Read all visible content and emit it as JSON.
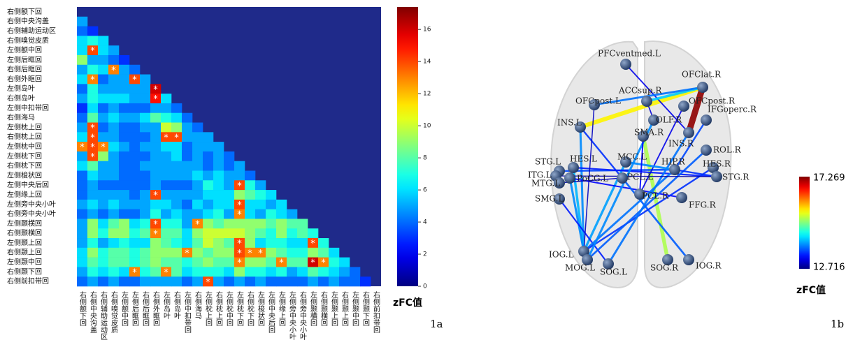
{
  "chart_data": [
    {
      "type": "heatmap",
      "panel": "1a",
      "colorbar_label": "zFC值",
      "marker": "*",
      "categories": [
        "右侧额下回",
        "右侧中央沟盖",
        "右侧辅助运动区",
        "右侧嗅觉皮质",
        "左侧额中回",
        "左侧后眶回",
        "右侧后眶回",
        "右侧外眶回",
        "左侧岛叶",
        "右侧岛叶",
        "左侧中扣带回",
        "右侧海马",
        "左侧枕上回",
        "右侧枕上回",
        "左侧枕中回",
        "左侧枕下回",
        "右侧枕下回",
        "左侧梭状回",
        "左侧中央后回",
        "左侧缘上回",
        "左侧旁中央小叶",
        "右侧旁中央小叶",
        "左侧颞横回",
        "右侧颞横回",
        "左侧颞上回",
        "右侧颞上回",
        "左侧颞中回",
        "右侧颞下回",
        "右侧前扣带回"
      ],
      "values": [
        [],
        [
          5
        ],
        [
          4,
          3
        ],
        [
          6,
          7,
          6
        ],
        [
          6,
          14,
          6,
          5
        ],
        [
          9,
          5,
          5,
          4,
          3
        ],
        [
          5,
          7,
          6,
          13,
          5,
          4
        ],
        [
          6,
          13,
          4,
          5,
          5,
          14,
          5
        ],
        [
          4,
          7,
          5,
          5,
          5,
          5,
          5,
          16
        ],
        [
          5,
          7,
          6,
          6,
          6,
          5,
          5,
          15,
          6
        ],
        [
          3,
          6,
          4,
          5,
          4,
          4,
          4,
          5,
          5,
          4
        ],
        [
          4,
          8,
          5,
          6,
          5,
          5,
          6,
          8,
          7,
          6,
          4
        ],
        [
          5,
          14,
          4,
          5,
          4,
          4,
          5,
          5,
          10,
          9,
          5,
          4
        ],
        [
          6,
          14,
          5,
          5,
          4,
          4,
          4,
          5,
          14,
          14,
          5,
          5,
          5
        ],
        [
          13,
          14,
          13,
          6,
          5,
          4,
          5,
          5,
          6,
          6,
          4,
          5,
          5,
          5
        ],
        [
          5,
          14,
          9,
          5,
          4,
          4,
          4,
          5,
          5,
          6,
          4,
          5,
          4,
          5,
          4
        ],
        [
          6,
          8,
          5,
          5,
          4,
          4,
          5,
          5,
          5,
          5,
          5,
          5,
          4,
          5,
          4,
          5
        ],
        [
          4,
          6,
          5,
          5,
          4,
          4,
          4,
          5,
          5,
          5,
          5,
          6,
          5,
          6,
          5,
          5,
          4
        ],
        [
          4,
          5,
          4,
          4,
          4,
          4,
          4,
          5,
          4,
          4,
          4,
          5,
          7,
          6,
          5,
          14,
          7,
          5
        ],
        [
          4,
          5,
          5,
          5,
          5,
          4,
          5,
          14,
          5,
          5,
          5,
          5,
          6,
          6,
          6,
          9,
          8,
          7,
          6
        ],
        [
          5,
          6,
          5,
          6,
          5,
          5,
          5,
          6,
          6,
          5,
          4,
          6,
          5,
          6,
          6,
          14,
          6,
          6,
          5,
          6
        ],
        [
          4,
          5,
          4,
          5,
          4,
          4,
          5,
          7,
          5,
          6,
          5,
          5,
          6,
          7,
          5,
          13,
          6,
          5,
          7,
          6,
          5
        ],
        [
          5,
          9,
          6,
          8,
          9,
          6,
          7,
          14,
          7,
          7,
          5,
          13,
          9,
          8,
          9,
          9,
          9,
          9,
          8,
          9,
          8,
          8
        ],
        [
          5,
          9,
          7,
          9,
          9,
          7,
          8,
          13,
          8,
          8,
          6,
          9,
          10,
          10,
          10,
          10,
          9,
          8,
          7,
          9,
          7,
          8,
          7
        ],
        [
          5,
          7,
          5,
          6,
          7,
          6,
          6,
          9,
          8,
          7,
          6,
          8,
          10,
          9,
          8,
          14,
          9,
          6,
          7,
          7,
          6,
          6,
          14,
          7
        ],
        [
          6,
          9,
          7,
          8,
          8,
          7,
          8,
          9,
          9,
          9,
          13,
          9,
          8,
          9,
          9,
          14,
          13,
          13,
          9,
          8,
          7,
          7,
          9,
          8,
          6
        ],
        [
          6,
          8,
          7,
          8,
          8,
          7,
          8,
          9,
          8,
          8,
          7,
          8,
          9,
          8,
          8,
          13,
          9,
          9,
          8,
          13,
          8,
          8,
          16,
          13,
          7,
          6
        ],
        [
          5,
          7,
          6,
          7,
          6,
          13,
          7,
          8,
          13,
          8,
          6,
          7,
          7,
          7,
          6,
          9,
          7,
          7,
          6,
          7,
          5,
          6,
          8,
          7,
          6,
          5,
          4
        ],
        [
          4,
          5,
          4,
          5,
          4,
          4,
          5,
          5,
          5,
          5,
          4,
          5,
          14,
          5,
          4,
          5,
          4,
          5,
          4,
          4,
          4,
          4,
          5,
          4,
          5,
          4,
          4,
          3
        ]
      ],
      "significant": [
        [
          4,
          1
        ],
        [
          6,
          3
        ],
        [
          7,
          1
        ],
        [
          7,
          5
        ],
        [
          8,
          7
        ],
        [
          9,
          7
        ],
        [
          12,
          1
        ],
        [
          13,
          1
        ],
        [
          13,
          8
        ],
        [
          13,
          9
        ],
        [
          14,
          0
        ],
        [
          14,
          1
        ],
        [
          14,
          2
        ],
        [
          15,
          1
        ],
        [
          18,
          15
        ],
        [
          19,
          7
        ],
        [
          20,
          15
        ],
        [
          21,
          15
        ],
        [
          22,
          7
        ],
        [
          22,
          11
        ],
        [
          23,
          7
        ],
        [
          24,
          15
        ],
        [
          24,
          22
        ],
        [
          25,
          10
        ],
        [
          25,
          15
        ],
        [
          25,
          16
        ],
        [
          25,
          17
        ],
        [
          26,
          15
        ],
        [
          26,
          19
        ],
        [
          26,
          22
        ],
        [
          26,
          23
        ],
        [
          27,
          5
        ],
        [
          27,
          8
        ],
        [
          28,
          12
        ]
      ],
      "zlim": [
        0,
        17.4
      ],
      "zticks": [
        0,
        2,
        4,
        6,
        8,
        10,
        12,
        14,
        16
      ]
    },
    {
      "type": "network",
      "panel": "1b",
      "colorbar_label": "zFC值",
      "zlim": [
        12.716,
        17.269
      ],
      "nodes": [
        "PFCventmed.L",
        "OFClat.R",
        "ACCsup.R",
        "OFCpost.L",
        "OFCpost.R",
        "IFGoperc.R",
        "OLF.R",
        "INS.L",
        "SMA.R",
        "INS.R",
        "ROL.R",
        "MCC.L",
        "HIP.R",
        "HES.R",
        "STG.L",
        "HES.L",
        "ITG.L",
        "MTG.L",
        "PoCG.L",
        "PCL.L",
        "STG.R",
        "SMG.L",
        "PCL.R",
        "FFG.R",
        "IOG.L",
        "MOG.L",
        "SOG.L",
        "SOG.R",
        "IOG.R"
      ],
      "edges": [
        {
          "source": 1,
          "target": 7,
          "value": 15.6
        },
        {
          "source": 1,
          "target": 9,
          "value": 17.2
        },
        {
          "source": 11,
          "target": 24,
          "value": 14.0
        },
        {
          "source": 8,
          "target": 27,
          "value": 15.2
        },
        {
          "source": 0,
          "target": 9,
          "value": 13.2
        },
        {
          "source": 2,
          "target": 1,
          "value": 14.2
        },
        {
          "source": 3,
          "target": 1,
          "value": 13.8
        },
        {
          "source": 7,
          "target": 24,
          "value": 13.9
        },
        {
          "source": 7,
          "target": 19,
          "value": 13.5
        },
        {
          "source": 15,
          "target": 24,
          "value": 14.1
        },
        {
          "source": 18,
          "target": 24,
          "value": 13.9
        },
        {
          "source": 14,
          "target": 12,
          "value": 13.6
        },
        {
          "source": 15,
          "target": 20,
          "value": 13.4
        },
        {
          "source": 18,
          "target": 23,
          "value": 13.3
        },
        {
          "source": 19,
          "target": 28,
          "value": 13.7
        },
        {
          "source": 21,
          "target": 26,
          "value": 13.4
        },
        {
          "source": 12,
          "target": 24,
          "value": 13.8
        },
        {
          "source": 13,
          "target": 24,
          "value": 13.5
        },
        {
          "source": 6,
          "target": 25,
          "value": 13.9
        },
        {
          "source": 4,
          "target": 22,
          "value": 13.2
        },
        {
          "source": 5,
          "target": 12,
          "value": 13.6
        },
        {
          "source": 10,
          "target": 25,
          "value": 13.7
        },
        {
          "source": 9,
          "target": 26,
          "value": 13.8
        },
        {
          "source": 12,
          "target": 20,
          "value": 13.5
        },
        {
          "source": 2,
          "target": 6,
          "value": 13.1
        },
        {
          "source": 16,
          "target": 20,
          "value": 12.9
        },
        {
          "source": 17,
          "target": 19,
          "value": 13.0
        },
        {
          "source": 11,
          "target": 12,
          "value": 13.9
        },
        {
          "source": 8,
          "target": 22,
          "value": 13.3
        },
        {
          "source": 3,
          "target": 24,
          "value": 13.0
        }
      ]
    }
  ]
}
